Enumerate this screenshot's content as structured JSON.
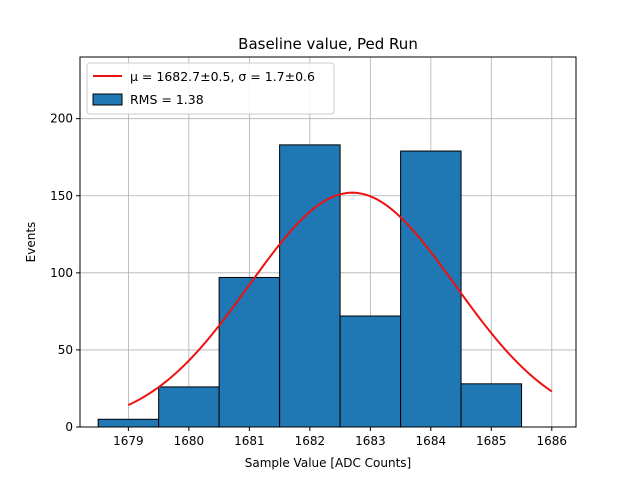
{
  "chart_data": {
    "type": "bar",
    "title": "Baseline value, Ped Run",
    "xlabel": "Sample Value [ADC Counts]",
    "ylabel": "Events",
    "xlim": [
      1678.2,
      1686.4
    ],
    "ylim": [
      0,
      240
    ],
    "grid": true,
    "legend_placement": "top-left",
    "xticks": [
      1679,
      1680,
      1681,
      1682,
      1683,
      1684,
      1685,
      1686
    ],
    "yticks": [
      0,
      50,
      100,
      150,
      200
    ],
    "histogram": {
      "name": "RMS = 1.38",
      "bin_edges": [
        1678.5,
        1679.5,
        1680.5,
        1681.5,
        1682.5,
        1683.5,
        1684.5,
        1685.5
      ],
      "values": [
        5,
        26,
        97,
        183,
        72,
        179,
        28
      ],
      "color": "#1f77b4",
      "edgecolor": "#000000"
    },
    "fit": {
      "name": "μ = 1682.7±0.5, σ = 1.7±0.6",
      "type": "gaussian",
      "amplitude": 152,
      "mu": 1682.7,
      "sigma": 1.7,
      "x_range": [
        1679,
        1686
      ],
      "color": "#ee1111"
    }
  }
}
